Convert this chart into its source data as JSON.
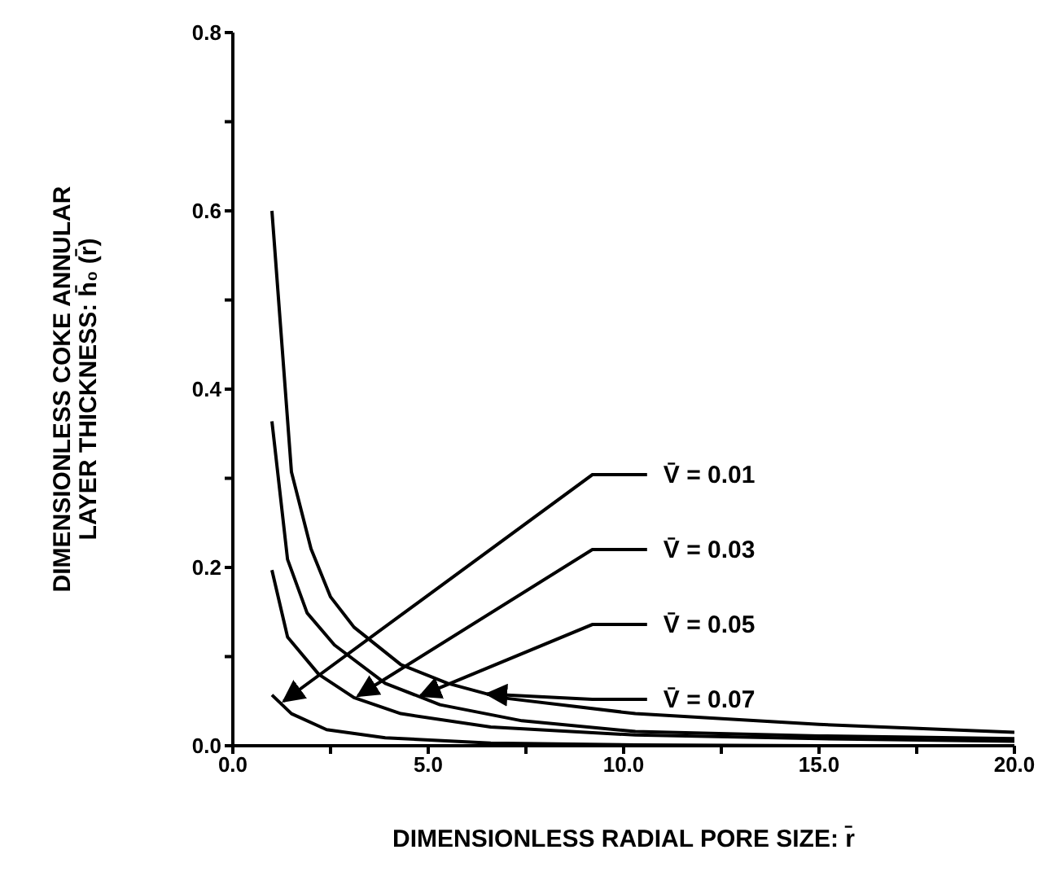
{
  "chart_data": {
    "type": "line",
    "xlabel": "DIMENSIONLESS RADIAL PORE SIZE: r̄",
    "ylabel": "DIMENSIONLESS COKE ANNULAR\nLAYER THICKNESS: h̄₀ (r̄)",
    "xlim": [
      0,
      20
    ],
    "ylim": [
      0,
      0.8
    ],
    "xticks": [
      {
        "value": 0,
        "label": "0.0"
      },
      {
        "value": 2.5,
        "label": null
      },
      {
        "value": 5,
        "label": "5.0"
      },
      {
        "value": 7.5,
        "label": null
      },
      {
        "value": 10,
        "label": "10.0"
      },
      {
        "value": 12.5,
        "label": null
      },
      {
        "value": 15,
        "label": "15.0"
      },
      {
        "value": 17.5,
        "label": null
      },
      {
        "value": 20,
        "label": "20.0"
      }
    ],
    "yticks": [
      {
        "value": 0,
        "label": "0.0"
      },
      {
        "value": 0.1,
        "label": null
      },
      {
        "value": 0.2,
        "label": "0.2"
      },
      {
        "value": 0.3,
        "label": null
      },
      {
        "value": 0.4,
        "label": "0.4"
      },
      {
        "value": 0.5,
        "label": null
      },
      {
        "value": 0.6,
        "label": "0.6"
      },
      {
        "value": 0.7,
        "label": null
      },
      {
        "value": 0.8,
        "label": "0.8"
      }
    ],
    "marker": "none",
    "line_style": "solid",
    "series": [
      {
        "color": "#000000",
        "x": [
          1.0,
          1.5,
          2.0,
          2.5,
          3.1,
          4.3,
          5.5,
          6.85,
          10.3,
          15,
          20
        ],
        "values": [
          0.6,
          0.307,
          0.221,
          0.167,
          0.133,
          0.091,
          0.07,
          0.054,
          0.036,
          0.024,
          0.015
        ]
      },
      {
        "color": "#000000",
        "x": [
          1.0,
          1.4,
          1.9,
          2.6,
          3.9,
          5.3,
          7.4,
          10.3,
          15,
          20
        ],
        "values": [
          0.364,
          0.209,
          0.149,
          0.113,
          0.07,
          0.046,
          0.028,
          0.016,
          0.011,
          0.008
        ]
      },
      {
        "color": "#000000",
        "x": [
          1.0,
          1.4,
          2.2,
          3.1,
          4.3,
          6.6,
          10.3,
          15,
          20
        ],
        "values": [
          0.197,
          0.122,
          0.08,
          0.054,
          0.036,
          0.021,
          0.012,
          0.008,
          0.005
        ]
      },
      {
        "color": "#000000",
        "x": [
          1.0,
          1.5,
          2.4,
          3.9,
          6.6,
          10.3,
          15,
          20
        ],
        "values": [
          0.057,
          0.036,
          0.018,
          0.009,
          0.003,
          0.001,
          0.0,
          0.0
        ]
      }
    ],
    "annotations": [
      {
        "text": "V̄ = 0.01",
        "x": 1.3,
        "y": 0.05
      },
      {
        "text": "V̄ = 0.03",
        "x": 3.2,
        "y": 0.056
      },
      {
        "text": "V̄ = 0.05",
        "x": 4.8,
        "y": 0.056
      },
      {
        "text": "V̄ = 0.07",
        "x": 6.5,
        "y": 0.058
      }
    ]
  }
}
